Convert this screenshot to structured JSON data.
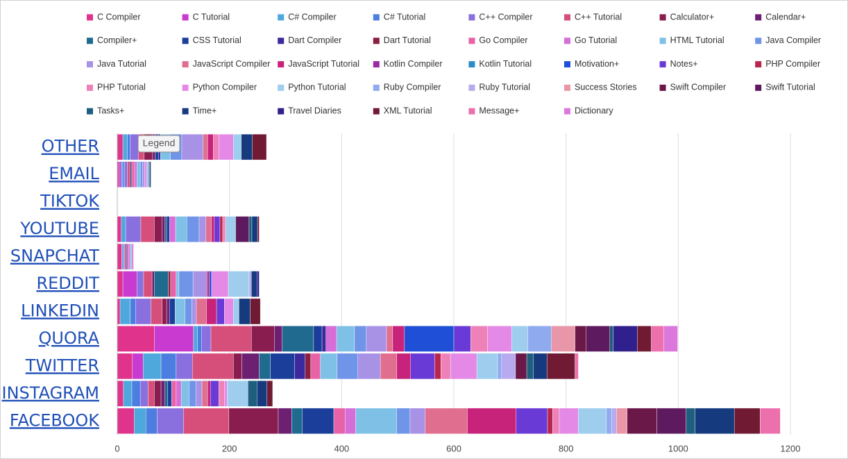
{
  "chart_data": {
    "type": "stacked-bar-horizontal",
    "tooltip": "Legend",
    "categories": [
      "OTHER",
      "EMAIL",
      "TIKTOK",
      "YOUTUBE",
      "SNAPCHAT",
      "REDDIT",
      "LINKEDIN",
      "QUORA",
      "TWITTER",
      "INSTAGRAM",
      "FACEBOOK"
    ],
    "xlim": [
      0,
      1200
    ],
    "xticks": [
      0,
      200,
      400,
      600,
      800,
      1000,
      1200
    ],
    "grid": true,
    "legend": "top",
    "series": [
      {
        "name": "C Compiler",
        "color": "#e0338c",
        "values": [
          10,
          3,
          0,
          7,
          8,
          10,
          5,
          66,
          27,
          11,
          30
        ]
      },
      {
        "name": "C Tutorial",
        "color": "#c93bd0",
        "values": [
          0,
          4,
          0,
          0,
          0,
          25,
          0,
          70,
          19,
          0,
          0
        ]
      },
      {
        "name": "C# Compiler",
        "color": "#4fa8dc",
        "values": [
          8,
          3,
          0,
          8,
          3,
          0,
          18,
          7,
          32,
          15,
          21
        ]
      },
      {
        "name": "C# Tutorial",
        "color": "#4c7de0",
        "values": [
          5,
          3,
          0,
          0,
          0,
          0,
          10,
          7,
          27,
          15,
          20
        ]
      },
      {
        "name": "C++ Compiler",
        "color": "#8a6fde",
        "values": [
          15,
          5,
          0,
          27,
          2,
          12,
          27,
          17,
          29,
          14,
          47
        ]
      },
      {
        "name": "C++ Tutorial",
        "color": "#d64f7a",
        "values": [
          10,
          4,
          0,
          24,
          2,
          15,
          20,
          72,
          73,
          11,
          81
        ]
      },
      {
        "name": "Calculator+",
        "color": "#8a1d4f",
        "values": [
          15,
          2,
          0,
          14,
          0,
          0,
          8,
          41,
          15,
          12,
          88
        ]
      },
      {
        "name": "Calendar+",
        "color": "#6d1f72",
        "values": [
          5,
          0,
          0,
          5,
          0,
          4,
          5,
          14,
          31,
          7,
          24
        ]
      },
      {
        "name": "Compiler+",
        "color": "#1f6a8e",
        "values": [
          0,
          0,
          0,
          3,
          0,
          25,
          0,
          56,
          20,
          5,
          19
        ]
      },
      {
        "name": "CSS Tutorial",
        "color": "#1a3e9a",
        "values": [
          6,
          2,
          0,
          5,
          2,
          0,
          10,
          15,
          43,
          7,
          56
        ]
      },
      {
        "name": "Dart Compiler",
        "color": "#3a2a9e",
        "values": [
          3,
          0,
          0,
          0,
          0,
          0,
          0,
          7,
          19,
          0,
          0
        ]
      },
      {
        "name": "Dart Tutorial",
        "color": "#8a1f3e",
        "values": [
          0,
          0,
          0,
          0,
          0,
          4,
          0,
          0,
          10,
          0,
          0
        ]
      },
      {
        "name": "Go Compiler",
        "color": "#e862a8",
        "values": [
          0,
          5,
          0,
          0,
          3,
          10,
          0,
          0,
          17,
          8,
          20
        ]
      },
      {
        "name": "Go Tutorial",
        "color": "#d66ed8",
        "values": [
          0,
          4,
          0,
          11,
          3,
          0,
          0,
          19,
          0,
          9,
          19
        ]
      },
      {
        "name": "HTML Tutorial",
        "color": "#7fc1e6",
        "values": [
          18,
          6,
          0,
          20,
          3,
          5,
          18,
          32,
          30,
          14,
          73
        ]
      },
      {
        "name": "Java Compiler",
        "color": "#6f94e8",
        "values": [
          20,
          4,
          0,
          22,
          0,
          25,
          12,
          21,
          37,
          12,
          24
        ]
      },
      {
        "name": "Java Tutorial",
        "color": "#a792e6",
        "values": [
          38,
          4,
          0,
          12,
          0,
          25,
          8,
          36,
          40,
          11,
          27
        ]
      },
      {
        "name": "JavaScript Compiler",
        "color": "#e06f8f",
        "values": [
          8,
          0,
          0,
          10,
          0,
          0,
          18,
          11,
          29,
          10,
          75
        ]
      },
      {
        "name": "JavaScript Tutorial",
        "color": "#c8237a",
        "values": [
          10,
          0,
          0,
          5,
          0,
          4,
          18,
          21,
          25,
          5,
          87
        ]
      },
      {
        "name": "Kotlin Compiler",
        "color": "#9a2aa6",
        "values": [
          0,
          0,
          0,
          0,
          0,
          0,
          0,
          0,
          0,
          0,
          0
        ]
      },
      {
        "name": "Kotlin Tutorial",
        "color": "#2a8cc8",
        "values": [
          0,
          0,
          0,
          0,
          0,
          0,
          0,
          0,
          0,
          0,
          0
        ]
      },
      {
        "name": "Motivation+",
        "color": "#1f4fd6",
        "values": [
          0,
          0,
          0,
          0,
          0,
          4,
          0,
          88,
          0,
          0,
          0
        ]
      },
      {
        "name": "Notes+",
        "color": "#6a3ad6",
        "values": [
          0,
          0,
          0,
          10,
          0,
          0,
          14,
          30,
          43,
          15,
          56
        ]
      },
      {
        "name": "PHP Compiler",
        "color": "#b8264e",
        "values": [
          0,
          0,
          0,
          5,
          0,
          0,
          0,
          0,
          11,
          0,
          9
        ]
      },
      {
        "name": "PHP Tutorial",
        "color": "#ee82b8",
        "values": [
          10,
          0,
          0,
          5,
          0,
          0,
          0,
          30,
          17,
          10,
          12
        ]
      },
      {
        "name": "Python Compiler",
        "color": "#e48ae6",
        "values": [
          26,
          4,
          0,
          0,
          0,
          30,
          16,
          43,
          47,
          5,
          34
        ]
      },
      {
        "name": "Python Tutorial",
        "color": "#9fcdee",
        "values": [
          14,
          3,
          0,
          18,
          0,
          37,
          10,
          29,
          37,
          37,
          50
        ]
      },
      {
        "name": "Ruby Compiler",
        "color": "#8faaee",
        "values": [
          0,
          0,
          0,
          0,
          0,
          0,
          0,
          42,
          7,
          0,
          9
        ]
      },
      {
        "name": "Ruby Tutorial",
        "color": "#b8aaee",
        "values": [
          0,
          0,
          0,
          0,
          0,
          4,
          0,
          0,
          25,
          0,
          9
        ]
      },
      {
        "name": "Success Stories",
        "color": "#e896a8",
        "values": [
          0,
          0,
          0,
          0,
          0,
          0,
          0,
          42,
          0,
          0,
          19
        ]
      },
      {
        "name": "Swift Compiler",
        "color": "#6a1848",
        "values": [
          0,
          0,
          0,
          0,
          0,
          0,
          0,
          20,
          20,
          0,
          53
        ]
      },
      {
        "name": "Swift Tutorial",
        "color": "#5e1a5e",
        "values": [
          0,
          0,
          0,
          24,
          0,
          0,
          0,
          42,
          0,
          0,
          52
        ]
      },
      {
        "name": "Tasks+",
        "color": "#1e5e7e",
        "values": [
          0,
          2,
          0,
          5,
          0,
          0,
          0,
          6,
          12,
          16,
          16
        ]
      },
      {
        "name": "Time+",
        "color": "#163a7e",
        "values": [
          20,
          2,
          0,
          10,
          0,
          10,
          20,
          0,
          24,
          18,
          70
        ]
      },
      {
        "name": "Travel Diaries",
        "color": "#30208e",
        "values": [
          0,
          0,
          0,
          0,
          0,
          4,
          0,
          43,
          0,
          0,
          0
        ]
      },
      {
        "name": "XML Tutorial",
        "color": "#701a34",
        "values": [
          25,
          0,
          0,
          3,
          0,
          0,
          18,
          25,
          50,
          10,
          46
        ]
      },
      {
        "name": "Message+",
        "color": "#ec70ac",
        "values": [
          0,
          0,
          0,
          0,
          0,
          0,
          0,
          22,
          6,
          0,
          36
        ]
      },
      {
        "name": "Dictionary",
        "color": "#dc78dc",
        "values": [
          0,
          0,
          0,
          0,
          3,
          0,
          0,
          25,
          0,
          0,
          0
        ]
      }
    ]
  }
}
